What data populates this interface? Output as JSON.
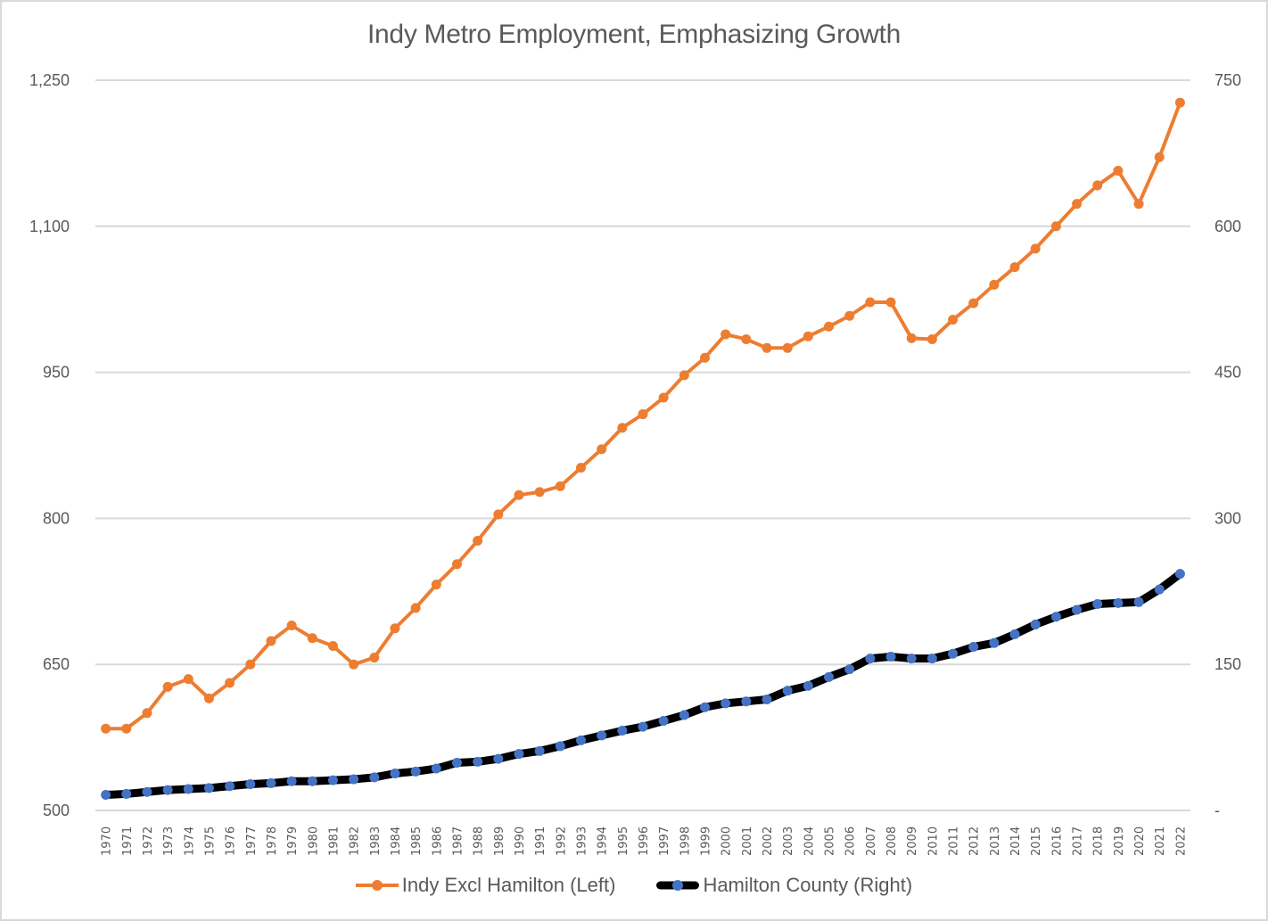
{
  "chart_data": {
    "type": "line",
    "title": "Indy Metro Employment, Emphasizing Growth",
    "xlabel": "",
    "ylabel_left": "",
    "ylabel_right": "",
    "grid": true,
    "legend_position": "bottom",
    "x": [
      "1970",
      "1971",
      "1972",
      "1973",
      "1974",
      "1975",
      "1976",
      "1977",
      "1978",
      "1979",
      "1980",
      "1981",
      "1982",
      "1983",
      "1984",
      "1985",
      "1986",
      "1987",
      "1988",
      "1989",
      "1990",
      "1991",
      "1992",
      "1993",
      "1994",
      "1995",
      "1996",
      "1997",
      "1998",
      "1999",
      "2000",
      "2001",
      "2002",
      "2003",
      "2004",
      "2005",
      "2006",
      "2007",
      "2008",
      "2009",
      "2010",
      "2011",
      "2012",
      "2013",
      "2014",
      "2015",
      "2016",
      "2017",
      "2018",
      "2019",
      "2020",
      "2021",
      "2022"
    ],
    "y_left": {
      "range": [
        500,
        1250
      ],
      "ticks": [
        500,
        650,
        800,
        950,
        1100,
        1250
      ],
      "tick_labels": [
        "500",
        "650",
        "800",
        "950",
        "1,100",
        "1,250"
      ]
    },
    "y_right": {
      "range": [
        0,
        750
      ],
      "ticks": [
        0,
        150,
        300,
        450,
        600,
        750
      ],
      "tick_labels": [
        "-",
        "150",
        "300",
        "450",
        "600",
        "750"
      ]
    },
    "series": [
      {
        "name": "Indy Excl Hamilton (Left)",
        "axis": "left",
        "line_color": "#ED7D31",
        "marker_color": "#ED7D31",
        "values": [
          584,
          584,
          600,
          627,
          635,
          615,
          631,
          650,
          674,
          690,
          677,
          669,
          650,
          657,
          687,
          708,
          732,
          753,
          777,
          804,
          824,
          827,
          833,
          852,
          871,
          893,
          907,
          924,
          947,
          965,
          989,
          984,
          975,
          975,
          987,
          997,
          1008,
          1022,
          1022,
          985,
          984,
          1004,
          1021,
          1040,
          1058,
          1077,
          1100,
          1123,
          1142,
          1157,
          1123,
          1171,
          1227
        ]
      },
      {
        "name": "Hamilton County (Right)",
        "axis": "right",
        "line_color": "#000000",
        "marker_color": "#4472C4",
        "values": [
          16,
          17,
          19,
          21,
          22,
          23,
          25,
          27,
          28,
          30,
          30,
          31,
          32,
          34,
          38,
          40,
          43,
          49,
          50,
          53,
          58,
          61,
          66,
          72,
          77,
          82,
          86,
          92,
          98,
          106,
          110,
          112,
          114,
          123,
          128,
          137,
          145,
          156,
          158,
          156,
          156,
          161,
          168,
          172,
          181,
          191,
          199,
          206,
          212,
          213,
          214,
          227,
          243
        ]
      }
    ]
  }
}
